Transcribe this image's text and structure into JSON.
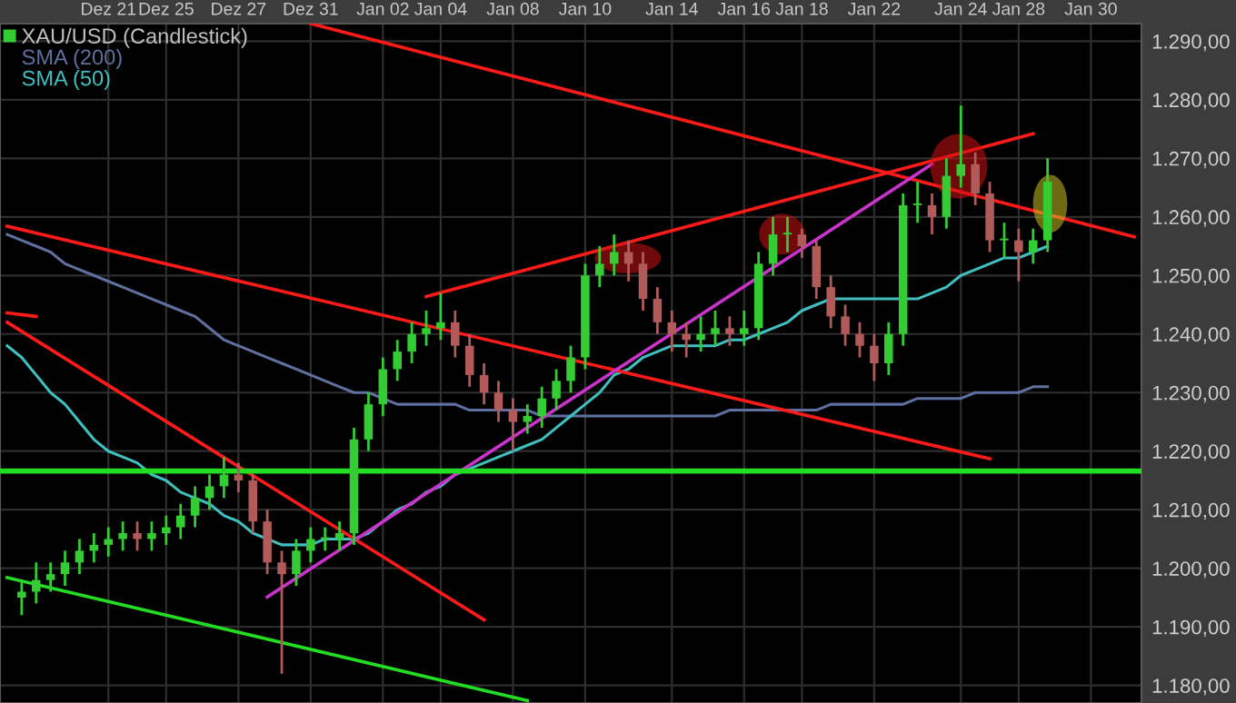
{
  "chart_data": {
    "type": "candlestick",
    "categories": [
      null,
      null,
      null,
      null,
      null,
      null,
      null,
      "Dez 21",
      null,
      null,
      null,
      "Dez 25",
      null,
      null,
      null,
      null,
      "Dez 27",
      null,
      null,
      null,
      null,
      "Dez 31",
      null,
      null,
      null,
      null,
      "Jan 02",
      null,
      null,
      null,
      "Jan 04",
      null,
      null,
      null,
      null,
      "Jan 08",
      null,
      null,
      null,
      null,
      "Jan 10",
      null,
      null,
      null,
      null,
      null,
      "Jan 14",
      null,
      null,
      null,
      null,
      "Jan 16",
      null,
      null,
      null,
      "Jan 18",
      null,
      null,
      null,
      null,
      "Jan 22",
      null,
      null,
      null,
      null,
      null,
      "Jan 24",
      null,
      null,
      null,
      "Jan 28",
      null,
      null,
      null,
      null,
      "Jan 30",
      null,
      null,
      null
    ],
    "series": [
      {
        "name": "XAU/USD (Candlestick)",
        "ohlc": [
          null,
          [
            1195,
            1198,
            1192,
            1196
          ],
          [
            1196,
            1201,
            1194,
            1198
          ],
          [
            1198,
            1201,
            1196,
            1199
          ],
          [
            1199,
            1203,
            1197,
            1201
          ],
          [
            1201,
            1205,
            1199,
            1203
          ],
          [
            1203,
            1206,
            1201,
            1204
          ],
          [
            1204,
            1207,
            1202,
            1205
          ],
          [
            1205,
            1208,
            1203,
            1206
          ],
          [
            1206,
            1208,
            1203,
            1205
          ],
          [
            1205,
            1208,
            1203,
            1206
          ],
          [
            1206,
            1209,
            1204,
            1207
          ],
          [
            1207,
            1211,
            1205,
            1209
          ],
          [
            1209,
            1214,
            1207,
            1212
          ],
          [
            1212,
            1216,
            1210,
            1214
          ],
          [
            1214,
            1219,
            1212,
            1216
          ],
          [
            1216,
            1218,
            1213,
            1215
          ],
          [
            1215,
            1216,
            1206,
            1208
          ],
          [
            1208,
            1210,
            1199,
            1201
          ],
          [
            1201,
            1203,
            1182,
            1199
          ],
          [
            1199,
            1205,
            1197,
            1203
          ],
          [
            1203,
            1207,
            1201,
            1205
          ],
          [
            1205,
            1207,
            1203,
            1205
          ],
          [
            1205,
            1208,
            1203,
            1206
          ],
          [
            1206,
            1224,
            1204,
            1222
          ],
          [
            1222,
            1230,
            1220,
            1228
          ],
          [
            1228,
            1236,
            1226,
            1234
          ],
          [
            1234,
            1239,
            1232,
            1237
          ],
          [
            1237,
            1242,
            1235,
            1240
          ],
          [
            1240,
            1244,
            1238,
            1241
          ],
          [
            1241,
            1247,
            1239,
            1242
          ],
          [
            1242,
            1244,
            1236,
            1238
          ],
          [
            1238,
            1240,
            1231,
            1233
          ],
          [
            1233,
            1235,
            1228,
            1230
          ],
          [
            1230,
            1232,
            1225,
            1227
          ],
          [
            1227,
            1229,
            1220,
            1225
          ],
          [
            1225,
            1228,
            1223,
            1226
          ],
          [
            1226,
            1231,
            1224,
            1229
          ],
          [
            1229,
            1234,
            1227,
            1232
          ],
          [
            1232,
            1238,
            1230,
            1236
          ],
          [
            1236,
            1252,
            1234,
            1250
          ],
          [
            1250,
            1255,
            1248,
            1252
          ],
          [
            1252,
            1257,
            1250,
            1254
          ],
          [
            1254,
            1256,
            1249,
            1252
          ],
          [
            1252,
            1254,
            1244,
            1246
          ],
          [
            1246,
            1248,
            1240,
            1242
          ],
          [
            1242,
            1244,
            1237,
            1240
          ],
          [
            1240,
            1242,
            1236,
            1239
          ],
          [
            1239,
            1243,
            1237,
            1240
          ],
          [
            1240,
            1244,
            1238,
            1241
          ],
          [
            1241,
            1243,
            1238,
            1240
          ],
          [
            1240,
            1244,
            1238,
            1241
          ],
          [
            1241,
            1254,
            1239,
            1252
          ],
          [
            1252,
            1260,
            1250,
            1257
          ],
          [
            1257,
            1260,
            1254,
            1257
          ],
          [
            1257,
            1258,
            1253,
            1255
          ],
          [
            1255,
            1256,
            1246,
            1248
          ],
          [
            1248,
            1250,
            1241,
            1243
          ],
          [
            1243,
            1245,
            1238,
            1240
          ],
          [
            1240,
            1242,
            1236,
            1238
          ],
          [
            1238,
            1240,
            1232,
            1235
          ],
          [
            1235,
            1242,
            1233,
            1240
          ],
          [
            1240,
            1264,
            1238,
            1262
          ],
          [
            1262,
            1266,
            1259,
            1262
          ],
          [
            1262,
            1264,
            1257,
            1260
          ],
          [
            1260,
            1270,
            1258,
            1267
          ],
          [
            1267,
            1279,
            1265,
            1269
          ],
          [
            1269,
            1271,
            1262,
            1264
          ],
          [
            1264,
            1266,
            1254,
            1256
          ],
          [
            1256,
            1259,
            1253,
            1256
          ],
          [
            1256,
            1258,
            1249,
            1254
          ],
          [
            1254,
            1258,
            1252,
            1256
          ],
          [
            1256,
            1270,
            1254,
            1266
          ],
          null,
          null,
          null,
          null,
          null,
          null
        ],
        "colors": [
          null,
          "#33cc33",
          "#33cc33",
          "#33cc33",
          "#33cc33",
          "#33cc33",
          "#33cc33",
          "#33cc33",
          "#33cc33",
          "#b05a5a",
          "#33cc33",
          "#33cc33",
          "#33cc33",
          "#33cc33",
          "#33cc33",
          "#33cc33",
          "#b05a5a",
          "#b05a5a",
          "#b05a5a",
          "#b05a5a",
          "#33cc33",
          "#33cc33",
          "#33cc33",
          "#33cc33",
          "#33cc33",
          "#33cc33",
          "#33cc33",
          "#33cc33",
          "#33cc33",
          "#33cc33",
          "#33cc33",
          "#b05a5a",
          "#b05a5a",
          "#b05a5a",
          "#b05a5a",
          "#b05a5a",
          "#33cc33",
          "#33cc33",
          "#33cc33",
          "#33cc33",
          "#33cc33",
          "#33cc33",
          "#33cc33",
          "#b05a5a",
          "#b05a5a",
          "#b05a5a",
          "#b05a5a",
          "#b05a5a",
          "#33cc33",
          "#33cc33",
          "#b05a5a",
          "#33cc33",
          "#33cc33",
          "#33cc33",
          "#33cc33",
          "#b05a5a",
          "#b05a5a",
          "#b05a5a",
          "#b05a5a",
          "#b05a5a",
          "#b05a5a",
          "#33cc33",
          "#33cc33",
          "#33cc33",
          "#b05a5a",
          "#33cc33",
          "#33cc33",
          "#b05a5a",
          "#b05a5a",
          "#33cc33",
          "#b05a5a",
          "#33cc33",
          "#33cc33",
          null,
          null,
          null,
          null,
          null,
          null
        ]
      },
      {
        "type": "line",
        "name": "SMA (200)",
        "color": "#5f6f9f",
        "values": [
          1257,
          1256,
          1255,
          1254,
          1252,
          1251,
          1250,
          1249,
          1248,
          1247,
          1246,
          1245,
          1244,
          1243,
          1241,
          1239,
          1238,
          1237,
          1236,
          1235,
          1234,
          1233,
          1232,
          1231,
          1230,
          1230,
          1229,
          1228,
          1228,
          1228,
          1228,
          1228,
          1227,
          1227,
          1227,
          1227,
          1227,
          1226,
          1226,
          1226,
          1226,
          1226,
          1226,
          1226,
          1226,
          1226,
          1226,
          1226,
          1226,
          1226,
          1227,
          1227,
          1227,
          1227,
          1227,
          1227,
          1227,
          1228,
          1228,
          1228,
          1228,
          1228,
          1228,
          1229,
          1229,
          1229,
          1229,
          1230,
          1230,
          1230,
          1230,
          1231,
          1231,
          null,
          null,
          null,
          null,
          null,
          null
        ]
      },
      {
        "type": "line",
        "name": "SMA (50)",
        "color": "#3fbfbf",
        "values": [
          1238,
          1236,
          1233,
          1230,
          1228,
          1225,
          1222,
          1220,
          1219,
          1218,
          1216,
          1215,
          1213,
          1212,
          1211,
          1209,
          1208,
          1206,
          1205,
          1204,
          1204,
          1204,
          1205,
          1205,
          1205,
          1206,
          1208,
          1210,
          1211,
          1213,
          1214,
          1216,
          1217,
          1218,
          1219,
          1220,
          1221,
          1222,
          1224,
          1226,
          1228,
          1230,
          1233,
          1234,
          1236,
          1237,
          1238,
          1238,
          1238,
          1238,
          1239,
          1239,
          1240,
          1241,
          1242,
          1244,
          1245,
          1246,
          1246,
          1246,
          1246,
          1246,
          1246,
          1246,
          1247,
          1248,
          1250,
          1251,
          1252,
          1253,
          1253,
          1254,
          1255,
          null,
          null,
          null,
          null,
          null,
          null
        ]
      },
      {
        "type": "line",
        "color": "#ff1a1a",
        "values": [
          null,
          null,
          null,
          null,
          null,
          null,
          null,
          null,
          null,
          null,
          null,
          null,
          null,
          null,
          null,
          null,
          null,
          null,
          null,
          null,
          null,
          1293,
          null,
          null,
          null,
          null,
          null,
          null,
          null,
          null,
          null,
          null,
          null,
          null,
          null,
          null,
          null,
          null,
          null,
          null,
          null,
          null,
          null,
          null,
          null,
          null,
          null,
          null,
          null,
          null,
          null,
          null,
          null,
          null,
          null,
          null,
          null,
          null,
          null,
          null,
          null,
          null,
          null,
          null,
          null,
          null,
          null,
          null,
          null,
          null,
          null,
          null,
          null,
          null,
          null,
          null,
          null,
          null,
          1256.6
        ]
      },
      {
        "type": "line",
        "color": "#ff1a1a",
        "values": [
          1258.4,
          null,
          null,
          null,
          null,
          null,
          null,
          null,
          null,
          null,
          null,
          null,
          null,
          null,
          null,
          null,
          null,
          null,
          null,
          null,
          null,
          null,
          null,
          null,
          null,
          null,
          null,
          null,
          null,
          null,
          null,
          null,
          null,
          null,
          null,
          null,
          null,
          null,
          null,
          null,
          null,
          null,
          null,
          null,
          null,
          null,
          null,
          null,
          null,
          null,
          null,
          null,
          null,
          null,
          null,
          null,
          null,
          null,
          null,
          null,
          null,
          null,
          null,
          null,
          null,
          null,
          null,
          null,
          1218.7,
          null,
          null,
          null,
          null,
          null,
          null,
          null,
          null,
          null,
          null
        ]
      },
      {
        "type": "line",
        "color": "#ff1a1a",
        "values": [
          null,
          null,
          null,
          null,
          null,
          null,
          null,
          null,
          null,
          null,
          null,
          null,
          null,
          null,
          null,
          null,
          null,
          null,
          null,
          null,
          null,
          null,
          null,
          null,
          null,
          null,
          null,
          null,
          null,
          1246.4,
          null,
          null,
          null,
          null,
          null,
          null,
          null,
          null,
          null,
          null,
          null,
          null,
          null,
          null,
          null,
          null,
          null,
          null,
          null,
          null,
          null,
          null,
          null,
          null,
          null,
          null,
          null,
          null,
          null,
          null,
          null,
          null,
          null,
          null,
          null,
          null,
          null,
          null,
          null,
          null,
          null,
          1274.2,
          null,
          null,
          null,
          null,
          null,
          null,
          null
        ]
      },
      {
        "type": "line",
        "color": "#ff1a1a",
        "values": [
          1243.6,
          null,
          1243,
          null,
          null,
          null,
          null,
          null,
          null,
          null,
          null,
          null,
          null,
          null,
          null,
          null,
          null,
          null,
          null,
          null,
          null,
          null,
          null,
          null,
          null,
          null,
          null,
          null,
          null,
          null,
          null,
          null,
          null,
          null,
          null,
          null,
          null,
          null,
          null,
          null,
          null,
          null,
          null,
          null,
          null,
          null,
          null,
          null,
          null,
          null,
          null,
          null,
          null,
          null,
          null,
          null,
          null,
          null,
          null,
          null,
          null,
          null,
          null,
          null,
          null,
          null,
          null,
          null,
          null,
          null,
          null,
          null,
          null,
          null,
          null,
          null,
          null,
          null,
          null
        ]
      },
      {
        "type": "line",
        "color": "#ff1a1a",
        "values": [
          1242,
          null,
          null,
          null,
          null,
          null,
          null,
          null,
          null,
          null,
          null,
          null,
          null,
          null,
          null,
          null,
          null,
          null,
          null,
          null,
          null,
          null,
          null,
          null,
          null,
          null,
          null,
          null,
          null,
          null,
          null,
          null,
          null,
          1191.2,
          null,
          null,
          null,
          null,
          null,
          null,
          null,
          null,
          null,
          null,
          null,
          null,
          null,
          null,
          null,
          null,
          null,
          null,
          null,
          null,
          null,
          null,
          null,
          null,
          null,
          null,
          null,
          null,
          null,
          null,
          null,
          null,
          null,
          null,
          null,
          null,
          null,
          null,
          null,
          null,
          null,
          null,
          null,
          null,
          null
        ]
      },
      {
        "type": "line",
        "color": "#22dd22",
        "values": [
          1198.4,
          null,
          null,
          null,
          null,
          null,
          null,
          null,
          null,
          null,
          null,
          null,
          null,
          null,
          null,
          null,
          null,
          null,
          null,
          null,
          null,
          null,
          null,
          null,
          null,
          null,
          null,
          null,
          null,
          null,
          null,
          null,
          null,
          null,
          null,
          null,
          1177.4,
          null,
          null,
          null,
          null,
          null,
          null,
          null,
          null,
          null,
          null,
          null,
          null,
          null,
          null,
          null,
          null,
          null,
          null,
          null,
          null,
          null,
          null,
          null,
          null,
          null,
          null,
          null,
          null,
          null,
          null,
          null,
          null,
          null,
          null,
          null,
          null,
          null,
          null,
          null,
          null,
          null,
          null
        ]
      },
      {
        "type": "line",
        "color": "#cc33cc",
        "values": [
          null,
          null,
          null,
          null,
          null,
          null,
          null,
          null,
          null,
          null,
          null,
          null,
          null,
          null,
          null,
          null,
          null,
          null,
          1195.1,
          null,
          null,
          null,
          null,
          null,
          null,
          null,
          null,
          null,
          null,
          null,
          null,
          null,
          null,
          null,
          null,
          null,
          null,
          null,
          null,
          null,
          null,
          null,
          null,
          null,
          null,
          null,
          null,
          null,
          null,
          null,
          null,
          null,
          null,
          null,
          null,
          null,
          null,
          null,
          null,
          null,
          null,
          null,
          null,
          null,
          1269,
          null,
          null,
          null,
          null,
          null,
          null,
          null,
          null,
          null,
          null,
          null,
          null,
          null,
          null
        ]
      }
    ],
    "ref_lines": [
      {
        "axis": "y",
        "value": 1216.6,
        "color": "#22dd22"
      }
    ],
    "ylim": [
      1177,
      1293
    ],
    "yticks": [
      {
        "value": 1180,
        "label": "1.180,00"
      },
      {
        "value": 1190,
        "label": "1.190,00"
      },
      {
        "value": 1200,
        "label": "1.200,00"
      },
      {
        "value": 1210,
        "label": "1.210,00"
      },
      {
        "value": 1220,
        "label": "1.220,00"
      },
      {
        "value": 1230,
        "label": "1.230,00"
      },
      {
        "value": 1240,
        "label": "1.240,00"
      },
      {
        "value": 1250,
        "label": "1.250,00"
      },
      {
        "value": 1260,
        "label": "1.260,00"
      },
      {
        "value": 1270,
        "label": "1.270,00"
      },
      {
        "value": 1280,
        "label": "1.280,00"
      },
      {
        "value": 1290,
        "label": "1.290,00"
      }
    ],
    "grid": true,
    "legend": "top left"
  }
}
